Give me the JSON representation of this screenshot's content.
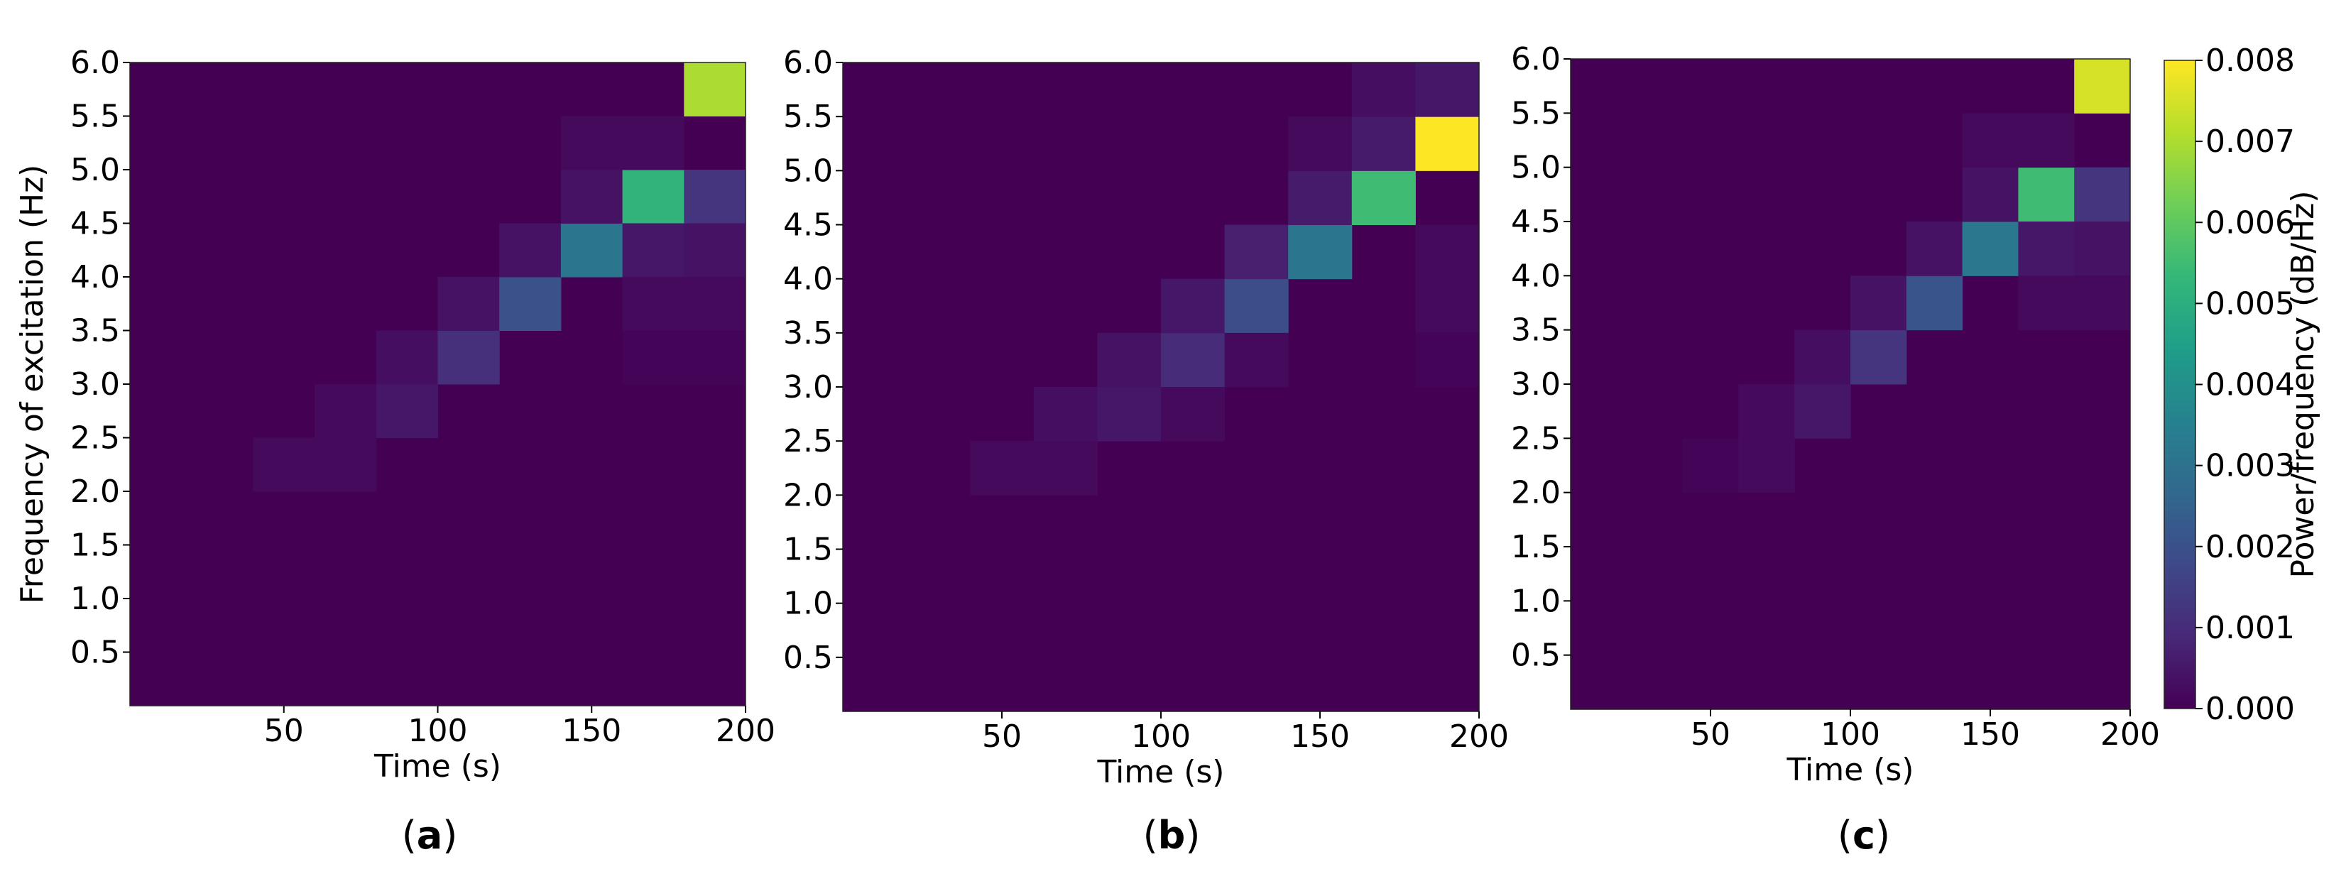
{
  "chart_data": [
    {
      "type": "heatmap",
      "panel": "a",
      "caption": {
        "open": "(",
        "letter": "a",
        "close": ")"
      },
      "xlabel": "Time (s)",
      "ylabel": "Frequency of excitation (Hz)",
      "xlim": [
        0,
        200
      ],
      "ylim": [
        0,
        6
      ],
      "xticks": [
        50,
        100,
        150,
        200
      ],
      "yticks": [
        0.5,
        1.0,
        1.5,
        2.0,
        2.5,
        3.0,
        3.5,
        4.0,
        4.5,
        5.0,
        5.5,
        6.0
      ],
      "colormap": "viridis",
      "vmin": 0,
      "vmax": 0.008,
      "x_bin_width": 20,
      "y_bin_height": 0.5,
      "cells": [
        [
          40,
          2.0,
          0.0002
        ],
        [
          60,
          2.0,
          0.0002
        ],
        [
          60,
          2.5,
          0.0002
        ],
        [
          80,
          2.5,
          0.0005
        ],
        [
          80,
          3.0,
          0.0003
        ],
        [
          100,
          3.0,
          0.0011
        ],
        [
          100,
          3.5,
          0.0004
        ],
        [
          120,
          3.5,
          0.002
        ],
        [
          120,
          4.0,
          0.0004
        ],
        [
          140,
          4.0,
          0.0031
        ],
        [
          140,
          4.5,
          0.0004
        ],
        [
          140,
          5.0,
          0.0002
        ],
        [
          160,
          4.5,
          0.0052
        ],
        [
          160,
          4.0,
          0.0005
        ],
        [
          160,
          3.5,
          0.0002
        ],
        [
          160,
          5.0,
          0.0002
        ],
        [
          160,
          3.0,
          0.0001
        ],
        [
          180,
          5.5,
          0.007
        ],
        [
          180,
          4.5,
          0.0012
        ],
        [
          180,
          4.0,
          0.0004
        ],
        [
          180,
          3.5,
          0.0002
        ],
        [
          180,
          3.0,
          0.0001
        ]
      ]
    },
    {
      "type": "heatmap",
      "panel": "b",
      "caption": {
        "open": "(",
        "letter": "b",
        "close": ")"
      },
      "xlabel": "Time (s)",
      "ylabel": "",
      "xlim": [
        0,
        200
      ],
      "ylim": [
        0,
        6
      ],
      "xticks": [
        50,
        100,
        150,
        200
      ],
      "yticks": [
        0.5,
        1.0,
        1.5,
        2.0,
        2.5,
        3.0,
        3.5,
        4.0,
        4.5,
        5.0,
        5.5,
        6.0
      ],
      "colormap": "viridis",
      "vmin": 0,
      "vmax": 0.008,
      "x_bin_width": 20,
      "y_bin_height": 0.5,
      "cells": [
        [
          40,
          2.0,
          0.0002
        ],
        [
          60,
          2.0,
          0.0002
        ],
        [
          60,
          2.5,
          0.0003
        ],
        [
          80,
          2.5,
          0.0005
        ],
        [
          80,
          3.0,
          0.0004
        ],
        [
          100,
          3.0,
          0.001
        ],
        [
          100,
          3.5,
          0.0005
        ],
        [
          120,
          3.5,
          0.0019
        ],
        [
          120,
          4.0,
          0.0007
        ],
        [
          140,
          4.0,
          0.0031
        ],
        [
          140,
          4.5,
          0.0006
        ],
        [
          140,
          5.0,
          0.0002
        ],
        [
          160,
          4.5,
          0.0055
        ],
        [
          160,
          5.0,
          0.0006
        ],
        [
          160,
          5.5,
          0.0003
        ],
        [
          180,
          5.0,
          0.008
        ],
        [
          180,
          5.5,
          0.0005
        ],
        [
          180,
          4.0,
          0.0002
        ],
        [
          180,
          3.5,
          0.0002
        ],
        [
          180,
          3.0,
          0.0001
        ],
        [
          100,
          2.5,
          0.0002
        ],
        [
          120,
          3.0,
          0.0002
        ]
      ]
    },
    {
      "type": "heatmap",
      "panel": "c",
      "caption": {
        "open": "(",
        "letter": "c",
        "close": ")"
      },
      "xlabel": "Time (s)",
      "ylabel": "",
      "xlim": [
        0,
        200
      ],
      "ylim": [
        0,
        6
      ],
      "xticks": [
        50,
        100,
        150,
        200
      ],
      "yticks": [
        0.5,
        1.0,
        1.5,
        2.0,
        2.5,
        3.0,
        3.5,
        4.0,
        4.5,
        5.0,
        5.5,
        6.0
      ],
      "colormap": "viridis",
      "vmin": 0,
      "vmax": 0.008,
      "x_bin_width": 20,
      "y_bin_height": 0.5,
      "cells": [
        [
          40,
          2.0,
          0.0001
        ],
        [
          60,
          2.0,
          0.0002
        ],
        [
          60,
          2.5,
          0.0002
        ],
        [
          80,
          2.5,
          0.0005
        ],
        [
          80,
          3.0,
          0.0003
        ],
        [
          100,
          3.0,
          0.0012
        ],
        [
          100,
          3.5,
          0.0004
        ],
        [
          120,
          3.5,
          0.0021
        ],
        [
          120,
          4.0,
          0.0004
        ],
        [
          140,
          4.0,
          0.0032
        ],
        [
          140,
          4.5,
          0.0004
        ],
        [
          140,
          5.0,
          0.0002
        ],
        [
          160,
          4.5,
          0.0055
        ],
        [
          160,
          4.0,
          0.0005
        ],
        [
          160,
          3.5,
          0.0002
        ],
        [
          160,
          5.0,
          0.0002
        ],
        [
          180,
          5.5,
          0.0075
        ],
        [
          180,
          4.5,
          0.0012
        ],
        [
          180,
          4.0,
          0.0004
        ],
        [
          180,
          3.5,
          0.0002
        ]
      ]
    }
  ],
  "colorbar": {
    "label": "Power/frequency (dB/Hz)",
    "ticks": [
      0.0,
      0.001,
      0.002,
      0.003,
      0.004,
      0.005,
      0.006,
      0.007,
      0.008
    ],
    "tick_labels": [
      "0.000",
      "0.001",
      "0.002",
      "0.003",
      "0.004",
      "0.005",
      "0.006",
      "0.007",
      "0.008"
    ],
    "vmin": 0,
    "vmax": 0.008
  },
  "colors": {
    "viridis": [
      "#440154",
      "#482878",
      "#3e4989",
      "#31688e",
      "#26828e",
      "#1f9e89",
      "#35b779",
      "#6ece58",
      "#b5de2b",
      "#fde725"
    ]
  }
}
